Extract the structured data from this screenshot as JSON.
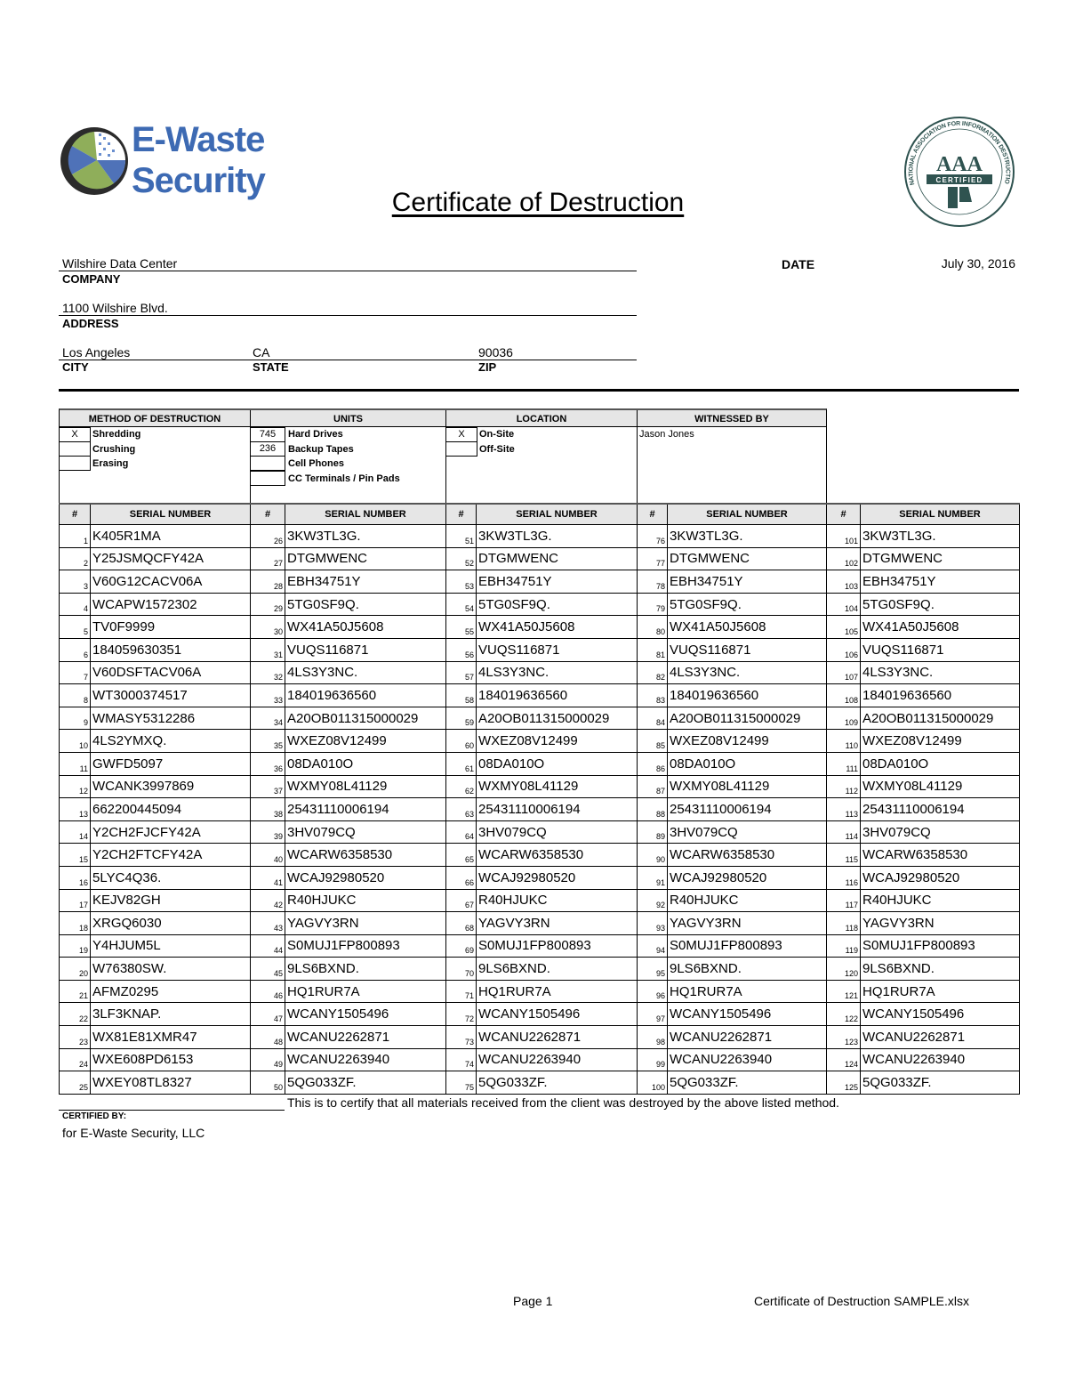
{
  "header": {
    "logo_text": "E-Waste Security",
    "logo_line1": "E-Waste",
    "logo_line2": "Security",
    "title": "Certificate of Destruction",
    "seal_text": "National Association for Information Destruction AAA Certified",
    "seal_main": "AAA",
    "seal_sub": "CERTIFIED"
  },
  "client": {
    "company": "Wilshire Data Center",
    "company_label": "COMPANY",
    "address": "1100 Wilshire Blvd.",
    "address_label": "ADDRESS",
    "city": "Los Angeles",
    "city_label": "CITY",
    "state": "CA",
    "state_label": "STATE",
    "zip": "90036",
    "zip_label": "ZIP",
    "date_label": "DATE",
    "date": "July 30, 2016"
  },
  "details": {
    "method_header": "METHOD OF DESTRUCTION",
    "units_header": "UNITS",
    "location_header": "LOCATION",
    "witness_header": "WITNESSED BY",
    "methods": [
      {
        "mark": "X",
        "label": "Shredding"
      },
      {
        "mark": "",
        "label": "Crushing"
      },
      {
        "mark": "",
        "label": "Erasing"
      }
    ],
    "units": [
      {
        "count": "745",
        "label": "Hard Drives"
      },
      {
        "count": "236",
        "label": "Backup Tapes"
      },
      {
        "count": "",
        "label": "Cell Phones"
      },
      {
        "count": "",
        "label": "CC Terminals / Pin Pads"
      }
    ],
    "locations": [
      {
        "mark": "X",
        "label": "On-Site"
      },
      {
        "mark": "",
        "label": "Off-Site"
      }
    ],
    "witness": "Jason Jones"
  },
  "serials": {
    "num_header": "#",
    "serial_header": "SERIAL NUMBER",
    "columns": [
      [
        [
          1,
          "K405R1MA"
        ],
        [
          2,
          "Y25JSMQCFY42A"
        ],
        [
          3,
          "V60G12CACV06A"
        ],
        [
          4,
          "WCAPW1572302"
        ],
        [
          5,
          "TV0F9999"
        ],
        [
          6,
          "184059630351"
        ],
        [
          7,
          "V60DSFTACV06A"
        ],
        [
          8,
          "WT3000374517"
        ],
        [
          9,
          "WMASY5312286"
        ],
        [
          10,
          "4LS2YMXQ."
        ],
        [
          11,
          "GWFD5097"
        ],
        [
          12,
          "WCANK3997869"
        ],
        [
          13,
          "662200445094"
        ],
        [
          14,
          "Y2CH2FJCFY42A"
        ],
        [
          15,
          "Y2CH2FTCFY42A"
        ],
        [
          16,
          "5LYC4Q36."
        ],
        [
          17,
          "KEJV82GH"
        ],
        [
          18,
          "XRGQ6030"
        ],
        [
          19,
          "Y4HJUM5L"
        ],
        [
          20,
          "W76380SW."
        ],
        [
          21,
          "AFMZ0295"
        ],
        [
          22,
          "3LF3KNAP."
        ],
        [
          23,
          "WX81E81XMR47"
        ],
        [
          24,
          "WXE608PD6153"
        ],
        [
          25,
          "WXEY08TL8327"
        ]
      ],
      [
        [
          26,
          "3KW3TL3G."
        ],
        [
          27,
          "DTGMWENC"
        ],
        [
          28,
          "EBH34751Y"
        ],
        [
          29,
          "5TG0SF9Q."
        ],
        [
          30,
          "WX41A50J5608"
        ],
        [
          31,
          "VUQS116871"
        ],
        [
          32,
          "4LS3Y3NC."
        ],
        [
          33,
          "184019636560"
        ],
        [
          34,
          "A20OB011315000029"
        ],
        [
          35,
          "WXEZ08V12499"
        ],
        [
          36,
          "08DA010O"
        ],
        [
          37,
          "WXMY08L41129"
        ],
        [
          38,
          "25431110006194"
        ],
        [
          39,
          "3HV079CQ"
        ],
        [
          40,
          "WCARW6358530"
        ],
        [
          41,
          "WCAJ92980520"
        ],
        [
          42,
          "R40HJUKC"
        ],
        [
          43,
          "YAGVY3RN"
        ],
        [
          44,
          "S0MUJ1FP800893"
        ],
        [
          45,
          "9LS6BXND."
        ],
        [
          46,
          "HQ1RUR7A"
        ],
        [
          47,
          "WCANY1505496"
        ],
        [
          48,
          "WCANU2262871"
        ],
        [
          49,
          "WCANU2263940"
        ],
        [
          50,
          "5QG033ZF."
        ]
      ],
      [
        [
          51,
          "3KW3TL3G."
        ],
        [
          52,
          "DTGMWENC"
        ],
        [
          53,
          "EBH34751Y"
        ],
        [
          54,
          "5TG0SF9Q."
        ],
        [
          55,
          "WX41A50J5608"
        ],
        [
          56,
          "VUQS116871"
        ],
        [
          57,
          "4LS3Y3NC."
        ],
        [
          58,
          "184019636560"
        ],
        [
          59,
          "A20OB011315000029"
        ],
        [
          60,
          "WXEZ08V12499"
        ],
        [
          61,
          "08DA010O"
        ],
        [
          62,
          "WXMY08L41129"
        ],
        [
          63,
          "25431110006194"
        ],
        [
          64,
          "3HV079CQ"
        ],
        [
          65,
          "WCARW6358530"
        ],
        [
          66,
          "WCAJ92980520"
        ],
        [
          67,
          "R40HJUKC"
        ],
        [
          68,
          "YAGVY3RN"
        ],
        [
          69,
          "S0MUJ1FP800893"
        ],
        [
          70,
          "9LS6BXND."
        ],
        [
          71,
          "HQ1RUR7A"
        ],
        [
          72,
          "WCANY1505496"
        ],
        [
          73,
          "WCANU2262871"
        ],
        [
          74,
          "WCANU2263940"
        ],
        [
          75,
          "5QG033ZF."
        ]
      ],
      [
        [
          76,
          "3KW3TL3G."
        ],
        [
          77,
          "DTGMWENC"
        ],
        [
          78,
          "EBH34751Y"
        ],
        [
          79,
          "5TG0SF9Q."
        ],
        [
          80,
          "WX41A50J5608"
        ],
        [
          81,
          "VUQS116871"
        ],
        [
          82,
          "4LS3Y3NC."
        ],
        [
          83,
          "184019636560"
        ],
        [
          84,
          "A20OB011315000029"
        ],
        [
          85,
          "WXEZ08V12499"
        ],
        [
          86,
          "08DA010O"
        ],
        [
          87,
          "WXMY08L41129"
        ],
        [
          88,
          "25431110006194"
        ],
        [
          89,
          "3HV079CQ"
        ],
        [
          90,
          "WCARW6358530"
        ],
        [
          91,
          "WCAJ92980520"
        ],
        [
          92,
          "R40HJUKC"
        ],
        [
          93,
          "YAGVY3RN"
        ],
        [
          94,
          "S0MUJ1FP800893"
        ],
        [
          95,
          "9LS6BXND."
        ],
        [
          96,
          "HQ1RUR7A"
        ],
        [
          97,
          "WCANY1505496"
        ],
        [
          98,
          "WCANU2262871"
        ],
        [
          99,
          "WCANU2263940"
        ],
        [
          100,
          "5QG033ZF."
        ]
      ],
      [
        [
          101,
          "3KW3TL3G."
        ],
        [
          102,
          "DTGMWENC"
        ],
        [
          103,
          "EBH34751Y"
        ],
        [
          104,
          "5TG0SF9Q."
        ],
        [
          105,
          "WX41A50J5608"
        ],
        [
          106,
          "VUQS116871"
        ],
        [
          107,
          "4LS3Y3NC."
        ],
        [
          108,
          "184019636560"
        ],
        [
          109,
          "A20OB011315000029"
        ],
        [
          110,
          "WXEZ08V12499"
        ],
        [
          111,
          "08DA010O"
        ],
        [
          112,
          "WXMY08L41129"
        ],
        [
          113,
          "25431110006194"
        ],
        [
          114,
          "3HV079CQ"
        ],
        [
          115,
          "WCARW6358530"
        ],
        [
          116,
          "WCAJ92980520"
        ],
        [
          117,
          "R40HJUKC"
        ],
        [
          118,
          "YAGVY3RN"
        ],
        [
          119,
          "S0MUJ1FP800893"
        ],
        [
          120,
          "9LS6BXND."
        ],
        [
          121,
          "HQ1RUR7A"
        ],
        [
          122,
          "WCANY1505496"
        ],
        [
          123,
          "WCANU2262871"
        ],
        [
          124,
          "WCANU2263940"
        ],
        [
          125,
          "5QG033ZF."
        ]
      ]
    ]
  },
  "certification": {
    "statement": "This is to certify that all materials received from the client was destroyed by the above listed method.",
    "certified_by_label": "CERTIFIED BY:",
    "certified_for": "for E-Waste Security, LLC"
  },
  "footer": {
    "page": "Page 1",
    "filename": "Certificate of Destruction SAMPLE.xlsx"
  },
  "colors": {
    "brand_blue": "#3d6ab3",
    "brand_green": "#8fae5a",
    "seal_green": "#2f5350",
    "header_gray": "#e6e6e6"
  }
}
